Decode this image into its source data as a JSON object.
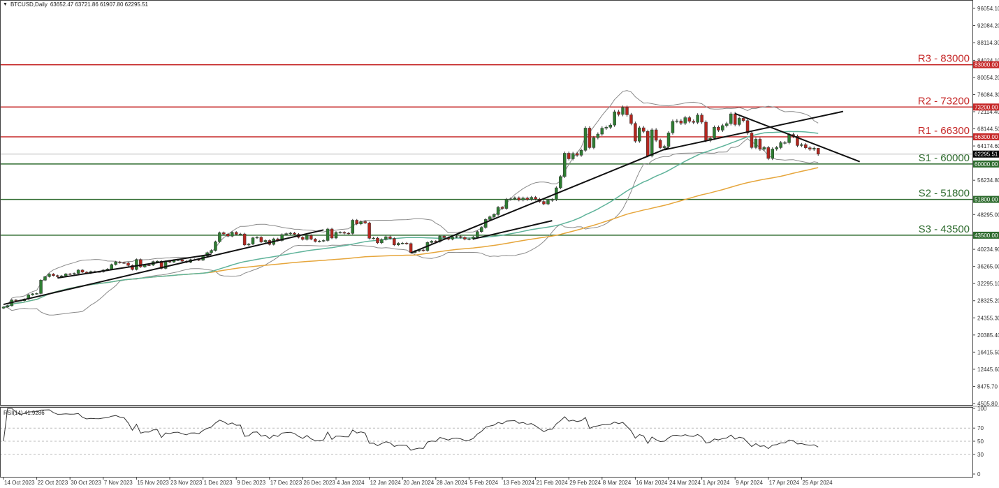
{
  "header": {
    "menu_icon": "triangle-down-icon",
    "symbol": "BTCUSD,Daily",
    "ohlc": "63652.47 63721.86 61907.80 62295.51"
  },
  "rsi_panel": {
    "label": "RSI(14) 41.9286",
    "levels": [
      70,
      50,
      30
    ],
    "ticks": [
      "100",
      "70",
      "50",
      "30",
      "0"
    ]
  },
  "colors": {
    "bull": "#2e7d32",
    "bear": "#b3261e",
    "resistance": "#c62828",
    "support": "#2e6b2e",
    "bollinger": "#8a8a8a",
    "ma_teal": "#5fb39a",
    "ma_orange": "#e6a63c",
    "trendline": "#111111",
    "current_price": "#000000"
  },
  "chart_data": {
    "type": "candlestick",
    "symbol": "BTCUSD",
    "timeframe": "Daily",
    "last_bar": {
      "open": 63652.47,
      "high": 63721.86,
      "low": 61907.8,
      "close": 62295.51
    },
    "current_price_label": "62295.51",
    "y_ticks": [
      "96054.10",
      "92084.20",
      "88114.30",
      "84024.10",
      "80054.20",
      "76084.30",
      "72114.40",
      "68144.50",
      "64174.60",
      "56234.80",
      "48295.00",
      "40234.90",
      "36265.00",
      "32295.10",
      "28325.20",
      "24355.30",
      "20385.40",
      "16415.50",
      "12445.60",
      "8475.70",
      "4505.80"
    ],
    "ylim": [
      4505.8,
      96054.1
    ],
    "x_ticks": [
      {
        "label": "14 Oct 2023",
        "date": "2023-10-14"
      },
      {
        "label": "22 Oct 2023",
        "date": "2023-10-22"
      },
      {
        "label": "30 Oct 2023",
        "date": "2023-10-30"
      },
      {
        "label": "7 Nov 2023",
        "date": "2023-11-07"
      },
      {
        "label": "15 Nov 2023",
        "date": "2023-11-15"
      },
      {
        "label": "23 Nov 2023",
        "date": "2023-11-23"
      },
      {
        "label": "1 Dec 2023",
        "date": "2023-12-01"
      },
      {
        "label": "9 Dec 2023",
        "date": "2023-12-09"
      },
      {
        "label": "17 Dec 2023",
        "date": "2023-12-17"
      },
      {
        "label": "26 Dec 2023",
        "date": "2023-12-26"
      },
      {
        "label": "4 Jan 2024",
        "date": "2024-01-04"
      },
      {
        "label": "12 Jan 2024",
        "date": "2024-01-12"
      },
      {
        "label": "20 Jan 2024",
        "date": "2024-01-20"
      },
      {
        "label": "28 Jan 2024",
        "date": "2024-01-28"
      },
      {
        "label": "5 Feb 2024",
        "date": "2024-02-05"
      },
      {
        "label": "13 Feb 2024",
        "date": "2024-02-13"
      },
      {
        "label": "21 Feb 2024",
        "date": "2024-02-21"
      },
      {
        "label": "29 Feb 2024",
        "date": "2024-02-29"
      },
      {
        "label": "8 Mar 2024",
        "date": "2024-03-08"
      },
      {
        "label": "16 Mar 2024",
        "date": "2024-03-16"
      },
      {
        "label": "24 Mar 2024",
        "date": "2024-03-24"
      },
      {
        "label": "1 Apr 2024",
        "date": "2024-04-01"
      },
      {
        "label": "9 Apr 2024",
        "date": "2024-04-09"
      },
      {
        "label": "17 Apr 2024",
        "date": "2024-04-17"
      },
      {
        "label": "25 Apr 2024",
        "date": "2024-04-25"
      }
    ],
    "levels": [
      {
        "name": "R3 - 83000",
        "value": 83000,
        "axis_label": "83000.00",
        "kind": "resistance"
      },
      {
        "name": "R2 - 73200",
        "value": 73200,
        "axis_label": "73200.00",
        "kind": "resistance"
      },
      {
        "name": "R1 - 66300",
        "value": 66300,
        "axis_label": "66300.00",
        "kind": "resistance"
      },
      {
        "name": "S1 - 60000",
        "value": 60000,
        "axis_label": "60000.00",
        "kind": "support"
      },
      {
        "name": "S2 - 51800",
        "value": 51800,
        "axis_label": "51800.00",
        "kind": "support"
      },
      {
        "name": "S3 - 43500",
        "value": 43500,
        "axis_label": "43500.00",
        "kind": "support"
      }
    ],
    "trendlines": [
      {
        "from": [
          "2023-10-14",
          27460
        ],
        "to": [
          "2023-12-31",
          44730
        ]
      },
      {
        "from": [
          "2023-10-27",
          33590
        ],
        "to": [
          "2023-12-03",
          39080
        ]
      },
      {
        "from": [
          "2024-01-22",
          39400
        ],
        "to": [
          "2024-03-24",
          63770
        ]
      },
      {
        "from": [
          "2024-03-23",
          63290
        ],
        "to": [
          "2024-05-05",
          72170
        ]
      },
      {
        "from": [
          "2024-04-09",
          71680
        ],
        "to": [
          "2024-05-09",
          60550
        ]
      },
      {
        "from": [
          "2024-02-06",
          42630
        ],
        "to": [
          "2024-02-25",
          46860
        ]
      }
    ],
    "indicators": [
      "Bollinger Bands(20)",
      "MA(50)",
      "MA(100)",
      "RSI(14)"
    ],
    "closes": [
      [
        "2023-10-14",
        26860
      ],
      [
        "2023-10-15",
        27150
      ],
      [
        "2023-10-16",
        28500
      ],
      [
        "2023-10-17",
        28400
      ],
      [
        "2023-10-18",
        28330
      ],
      [
        "2023-10-19",
        28710
      ],
      [
        "2023-10-20",
        29680
      ],
      [
        "2023-10-21",
        29920
      ],
      [
        "2023-10-22",
        30000
      ],
      [
        "2023-10-23",
        33080
      ],
      [
        "2023-10-24",
        33900
      ],
      [
        "2023-10-25",
        34500
      ],
      [
        "2023-10-26",
        34150
      ],
      [
        "2023-10-27",
        33900
      ],
      [
        "2023-10-28",
        34090
      ],
      [
        "2023-10-29",
        34540
      ],
      [
        "2023-10-30",
        34500
      ],
      [
        "2023-10-31",
        34660
      ],
      [
        "2023-11-01",
        35420
      ],
      [
        "2023-11-02",
        34940
      ],
      [
        "2023-11-03",
        34730
      ],
      [
        "2023-11-04",
        35080
      ],
      [
        "2023-11-05",
        35050
      ],
      [
        "2023-11-06",
        35040
      ],
      [
        "2023-11-07",
        35420
      ],
      [
        "2023-11-08",
        35650
      ],
      [
        "2023-11-09",
        36700
      ],
      [
        "2023-11-10",
        37320
      ],
      [
        "2023-11-11",
        37140
      ],
      [
        "2023-11-12",
        37070
      ],
      [
        "2023-11-13",
        36500
      ],
      [
        "2023-11-14",
        35550
      ],
      [
        "2023-11-15",
        37880
      ],
      [
        "2023-11-16",
        36160
      ],
      [
        "2023-11-17",
        36600
      ],
      [
        "2023-11-18",
        36580
      ],
      [
        "2023-11-19",
        37390
      ],
      [
        "2023-11-20",
        37470
      ],
      [
        "2023-11-21",
        35810
      ],
      [
        "2023-11-22",
        37430
      ],
      [
        "2023-11-23",
        37290
      ],
      [
        "2023-11-24",
        37720
      ],
      [
        "2023-11-25",
        37800
      ],
      [
        "2023-11-26",
        37480
      ],
      [
        "2023-11-27",
        37250
      ],
      [
        "2023-11-28",
        37830
      ],
      [
        "2023-11-29",
        37860
      ],
      [
        "2023-11-30",
        37730
      ],
      [
        "2023-12-01",
        38690
      ],
      [
        "2023-12-02",
        39460
      ],
      [
        "2023-12-03",
        39970
      ],
      [
        "2023-12-04",
        41990
      ],
      [
        "2023-12-05",
        44080
      ],
      [
        "2023-12-06",
        43770
      ],
      [
        "2023-12-07",
        43290
      ],
      [
        "2023-12-08",
        44170
      ],
      [
        "2023-12-09",
        43720
      ],
      [
        "2023-12-10",
        43790
      ],
      [
        "2023-12-11",
        41240
      ],
      [
        "2023-12-12",
        41450
      ],
      [
        "2023-12-13",
        42890
      ],
      [
        "2023-12-14",
        43020
      ],
      [
        "2023-12-15",
        41940
      ],
      [
        "2023-12-16",
        42280
      ],
      [
        "2023-12-17",
        41370
      ],
      [
        "2023-12-18",
        42660
      ],
      [
        "2023-12-19",
        42270
      ],
      [
        "2023-12-20",
        43650
      ],
      [
        "2023-12-21",
        43870
      ],
      [
        "2023-12-22",
        43990
      ],
      [
        "2023-12-23",
        43720
      ],
      [
        "2023-12-24",
        43010
      ],
      [
        "2023-12-26",
        42520
      ],
      [
        "2023-12-27",
        43440
      ],
      [
        "2023-12-28",
        42590
      ],
      [
        "2023-12-29",
        42070
      ],
      [
        "2023-12-30",
        42140
      ],
      [
        "2023-12-31",
        42280
      ],
      [
        "2024-01-02",
        44940
      ],
      [
        "2024-01-03",
        42850
      ],
      [
        "2024-01-04",
        44150
      ],
      [
        "2024-01-05",
        44160
      ],
      [
        "2024-01-06",
        43970
      ],
      [
        "2024-01-07",
        43930
      ],
      [
        "2024-01-08",
        46970
      ],
      [
        "2024-01-09",
        46120
      ],
      [
        "2024-01-10",
        46660
      ],
      [
        "2024-01-11",
        46340
      ],
      [
        "2024-01-12",
        42780
      ],
      [
        "2024-01-13",
        42840
      ],
      [
        "2024-01-14",
        41730
      ],
      [
        "2024-01-15",
        42510
      ],
      [
        "2024-01-16",
        43150
      ],
      [
        "2024-01-17",
        42740
      ],
      [
        "2024-01-18",
        41260
      ],
      [
        "2024-01-19",
        41620
      ],
      [
        "2024-01-20",
        41670
      ],
      [
        "2024-01-21",
        41560
      ],
      [
        "2024-01-22",
        39510
      ],
      [
        "2024-01-23",
        39850
      ],
      [
        "2024-01-24",
        40080
      ],
      [
        "2024-01-25",
        39940
      ],
      [
        "2024-01-26",
        41820
      ],
      [
        "2024-01-27",
        42120
      ],
      [
        "2024-01-28",
        42030
      ],
      [
        "2024-01-29",
        43300
      ],
      [
        "2024-01-30",
        42950
      ],
      [
        "2024-01-31",
        42580
      ],
      [
        "2024-02-01",
        43080
      ],
      [
        "2024-02-02",
        43190
      ],
      [
        "2024-02-03",
        42990
      ],
      [
        "2024-02-04",
        42580
      ],
      [
        "2024-02-05",
        42660
      ],
      [
        "2024-02-06",
        43090
      ],
      [
        "2024-02-07",
        44340
      ],
      [
        "2024-02-08",
        45290
      ],
      [
        "2024-02-09",
        47150
      ],
      [
        "2024-02-10",
        47770
      ],
      [
        "2024-02-11",
        48290
      ],
      [
        "2024-02-12",
        49960
      ],
      [
        "2024-02-13",
        49700
      ],
      [
        "2024-02-14",
        51810
      ],
      [
        "2024-02-15",
        51940
      ],
      [
        "2024-02-16",
        52160
      ],
      [
        "2024-02-17",
        51660
      ],
      [
        "2024-02-18",
        52120
      ],
      [
        "2024-02-19",
        51780
      ],
      [
        "2024-02-20",
        52280
      ],
      [
        "2024-02-21",
        51850
      ],
      [
        "2024-02-22",
        51320
      ],
      [
        "2024-02-23",
        50740
      ],
      [
        "2024-02-24",
        51570
      ],
      [
        "2024-02-25",
        51730
      ],
      [
        "2024-02-26",
        54480
      ],
      [
        "2024-02-27",
        57090
      ],
      [
        "2024-02-28",
        62500
      ],
      [
        "2024-02-29",
        61200
      ],
      [
        "2024-03-01",
        62440
      ],
      [
        "2024-03-02",
        62030
      ],
      [
        "2024-03-03",
        63170
      ],
      [
        "2024-03-04",
        68330
      ],
      [
        "2024-03-05",
        63800
      ],
      [
        "2024-03-06",
        66100
      ],
      [
        "2024-03-07",
        66930
      ],
      [
        "2024-03-08",
        68300
      ],
      [
        "2024-03-09",
        68500
      ],
      [
        "2024-03-10",
        69020
      ],
      [
        "2024-03-11",
        72100
      ],
      [
        "2024-03-12",
        71480
      ],
      [
        "2024-03-13",
        73100
      ],
      [
        "2024-03-14",
        71400
      ],
      [
        "2024-03-15",
        69400
      ],
      [
        "2024-03-16",
        65300
      ],
      [
        "2024-03-17",
        68390
      ],
      [
        "2024-03-18",
        67550
      ],
      [
        "2024-03-19",
        61910
      ],
      [
        "2024-03-20",
        67910
      ],
      [
        "2024-03-21",
        65490
      ],
      [
        "2024-03-22",
        63780
      ],
      [
        "2024-03-23",
        64060
      ],
      [
        "2024-03-24",
        67210
      ],
      [
        "2024-03-25",
        69880
      ],
      [
        "2024-03-26",
        69990
      ],
      [
        "2024-03-27",
        69450
      ],
      [
        "2024-03-28",
        70740
      ],
      [
        "2024-03-29",
        69890
      ],
      [
        "2024-03-30",
        69650
      ],
      [
        "2024-03-31",
        71330
      ],
      [
        "2024-04-01",
        69700
      ],
      [
        "2024-04-02",
        65440
      ],
      [
        "2024-04-03",
        65980
      ],
      [
        "2024-04-04",
        68510
      ],
      [
        "2024-04-05",
        67840
      ],
      [
        "2024-04-06",
        68900
      ],
      [
        "2024-04-07",
        69360
      ],
      [
        "2024-04-08",
        71620
      ],
      [
        "2024-04-09",
        69140
      ],
      [
        "2024-04-10",
        70590
      ],
      [
        "2024-04-11",
        70060
      ],
      [
        "2024-04-12",
        67190
      ],
      [
        "2024-04-13",
        63820
      ],
      [
        "2024-04-14",
        65740
      ],
      [
        "2024-04-15",
        63420
      ],
      [
        "2024-04-16",
        63810
      ],
      [
        "2024-04-17",
        61280
      ],
      [
        "2024-04-18",
        63470
      ],
      [
        "2024-04-19",
        63800
      ],
      [
        "2024-04-20",
        64940
      ],
      [
        "2024-04-21",
        64940
      ],
      [
        "2024-04-22",
        66840
      ],
      [
        "2024-04-23",
        66410
      ],
      [
        "2024-04-24",
        64280
      ],
      [
        "2024-04-25",
        64490
      ],
      [
        "2024-04-26",
        63760
      ],
      [
        "2024-04-27",
        63420
      ],
      [
        "2024-04-28",
        63652.47
      ],
      [
        "2024-04-29",
        62295.51
      ]
    ]
  }
}
